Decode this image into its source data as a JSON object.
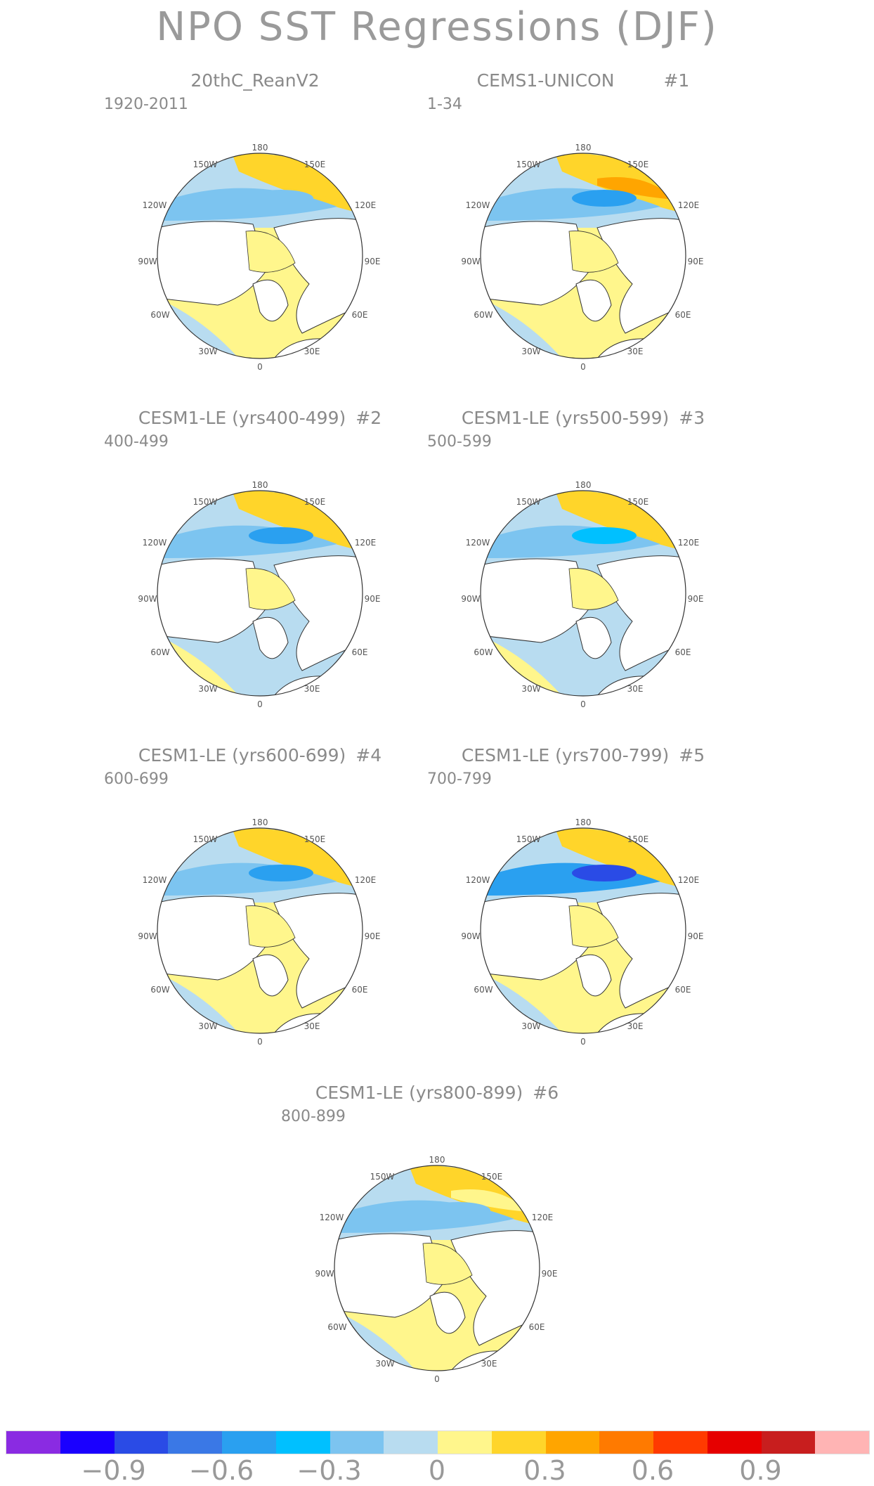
{
  "title": "NPO SST Regressions (DJF)",
  "panels": [
    {
      "id": "p0",
      "title": "20thC_ReanV2",
      "num": "",
      "period": "1920-2011"
    },
    {
      "id": "p1",
      "title": "CEMS1-UNICON",
      "num": "#1",
      "period": "1-34"
    },
    {
      "id": "p2",
      "title": "CESM1-LE (yrs400-499)",
      "num": "#2",
      "period": "400-499"
    },
    {
      "id": "p3",
      "title": "CESM1-LE (yrs500-599)",
      "num": "#3",
      "period": "500-599"
    },
    {
      "id": "p4",
      "title": "CESM1-LE (yrs600-699)",
      "num": "#4",
      "period": "600-699"
    },
    {
      "id": "p5",
      "title": "CESM1-LE (yrs700-799)",
      "num": "#5",
      "period": "700-799"
    },
    {
      "id": "p6",
      "title": "CESM1-LE (yrs800-899)",
      "num": "#6",
      "period": "800-899"
    }
  ],
  "lon_labels": {
    "top": "180",
    "top_left": "150W",
    "top_right": "150E",
    "upper_left": "120W",
    "upper_right": "120E",
    "left": "90W",
    "right": "90E",
    "lower_left": "60W",
    "lower_right": "60E",
    "bottom_left": "30W",
    "bottom_right": "30E",
    "bottom": "0"
  },
  "colorbar": {
    "colors": [
      "#8a2be2",
      "#1a00ff",
      "#2a4be6",
      "#3a78e6",
      "#2aa0f0",
      "#00c0ff",
      "#7cc4f0",
      "#b8dcf0",
      "#fff68c",
      "#ffd52a",
      "#ffa500",
      "#ff7a00",
      "#ff3a00",
      "#e60000",
      "#c81e1e",
      "#ffb4b4"
    ],
    "tick_labels": [
      "−0.9",
      "−0.6",
      "−0.3",
      "0",
      "0.3",
      "0.6",
      "0.9"
    ]
  }
}
